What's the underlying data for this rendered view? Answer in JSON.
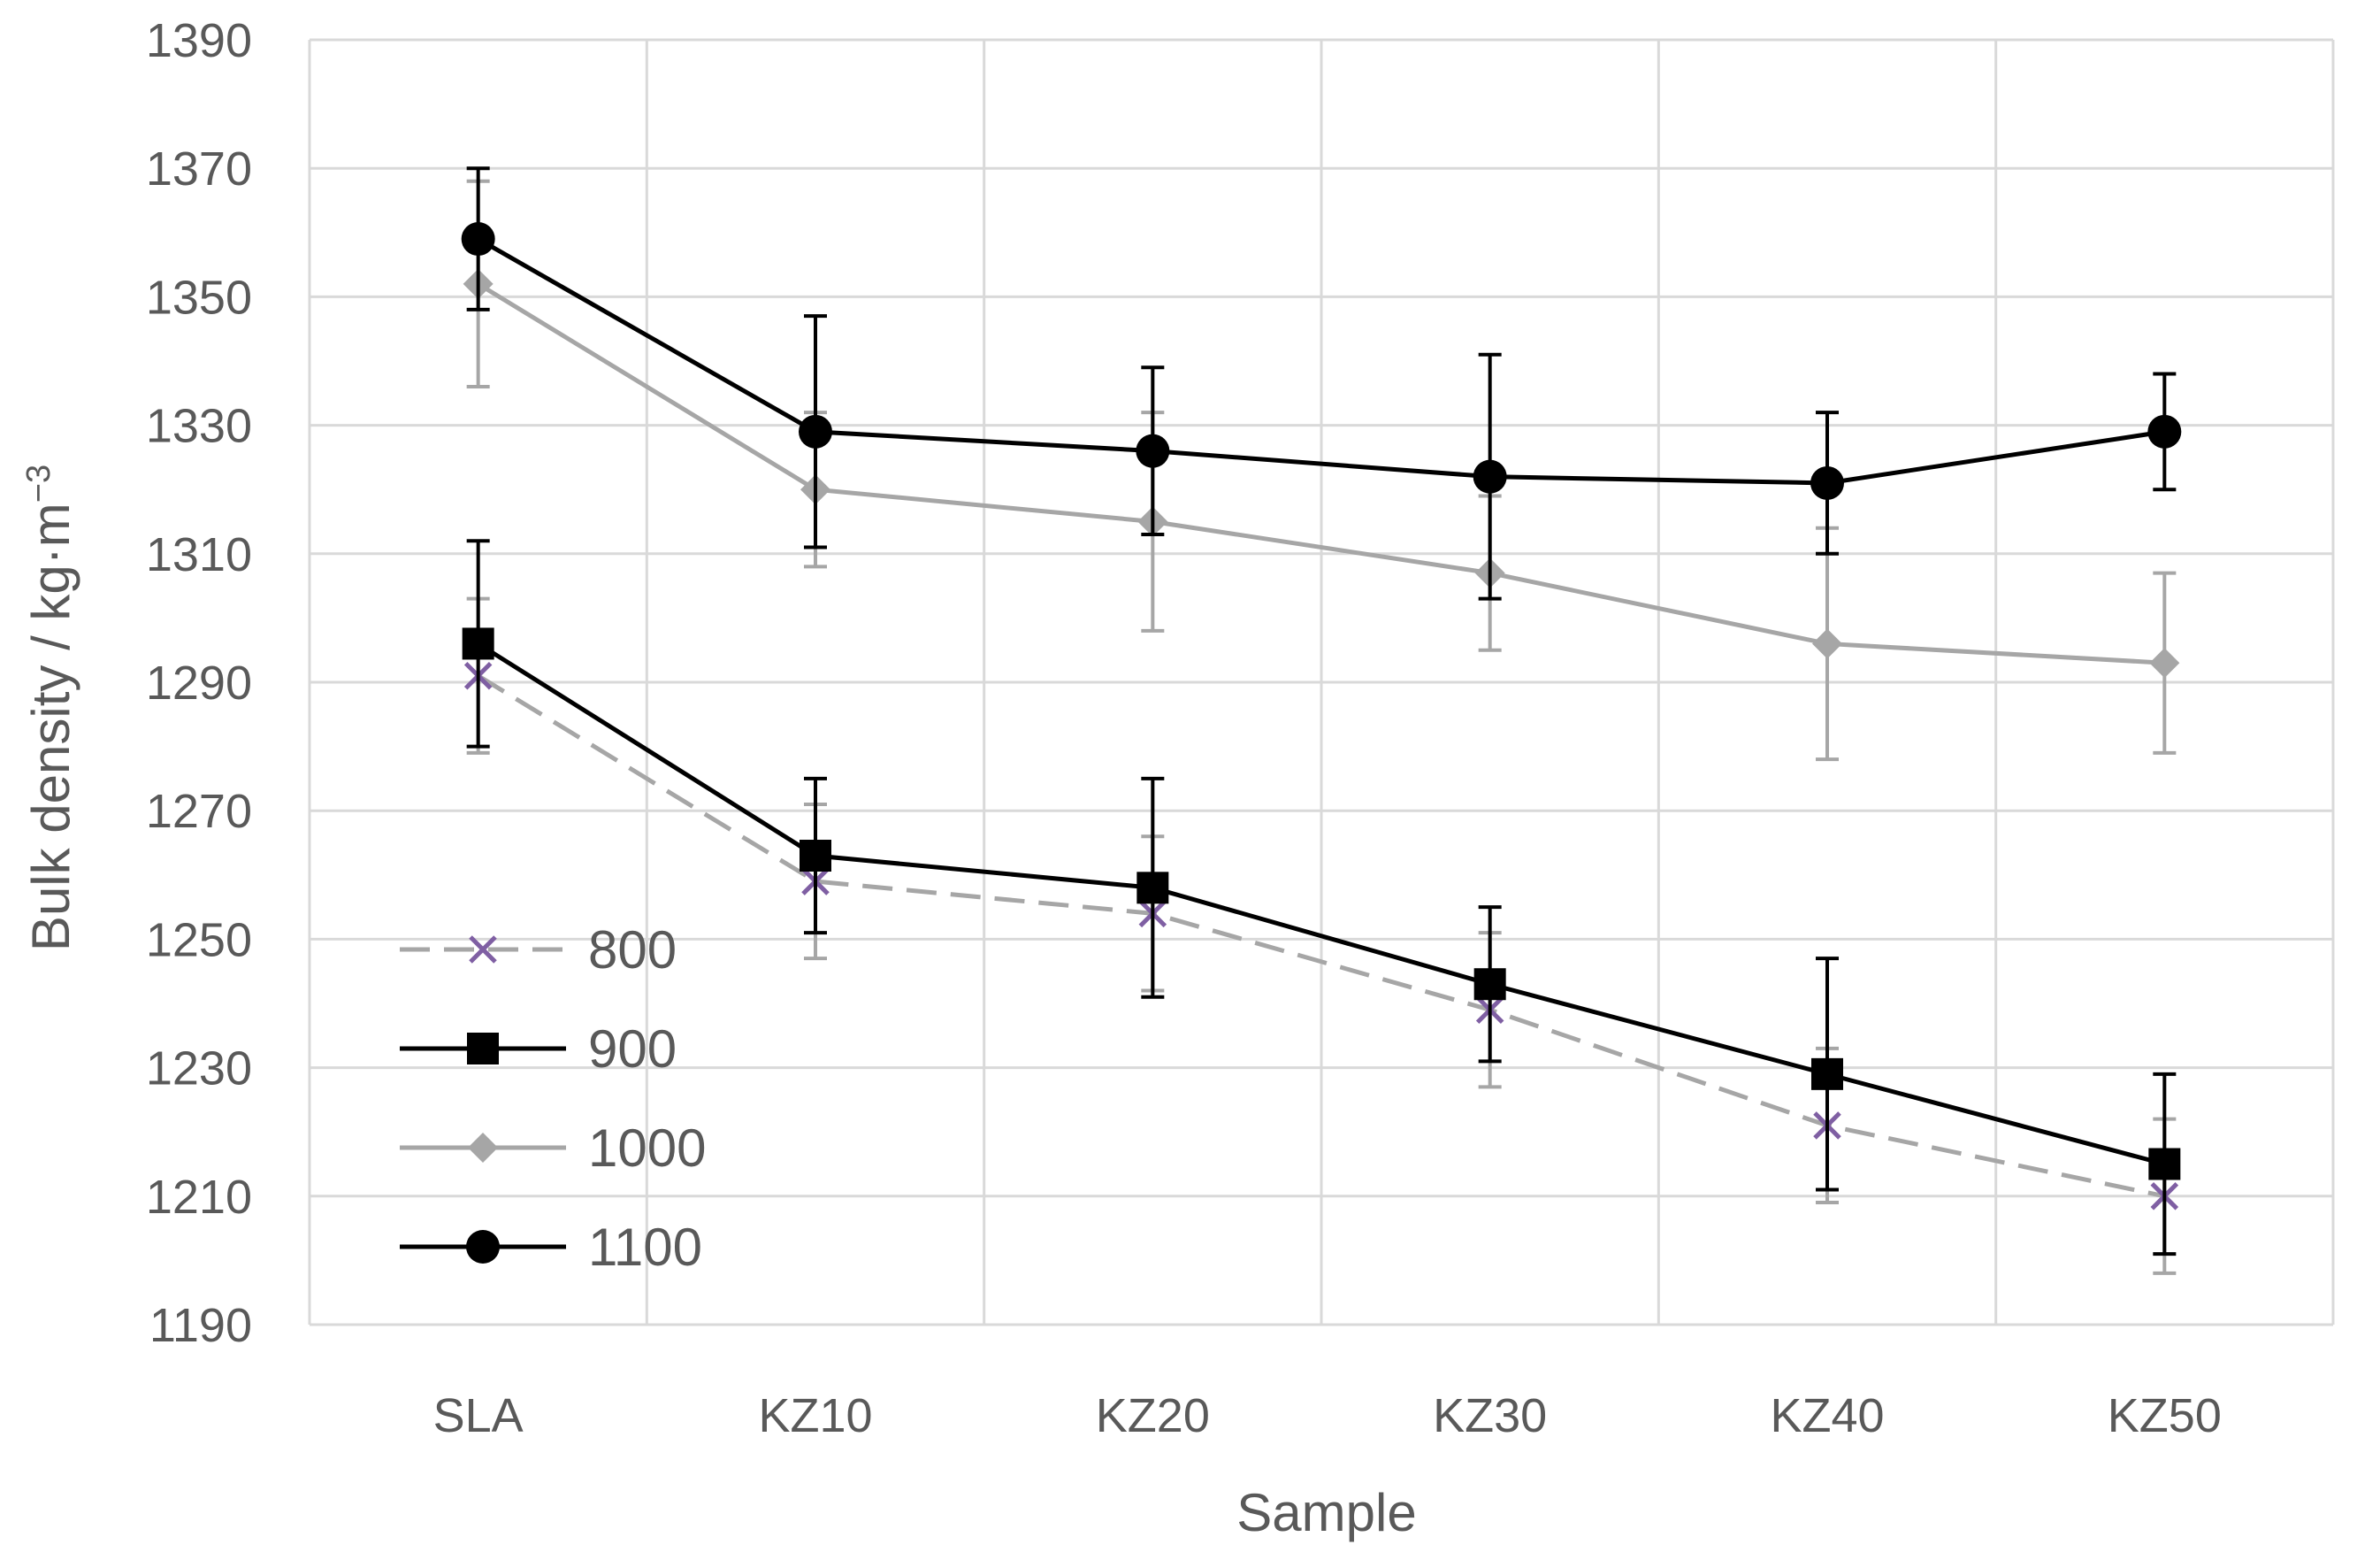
{
  "chart_data": {
    "type": "line",
    "title": "",
    "xlabel": "Sample",
    "ylabel": "Bulk density / kg·m",
    "ylabel_sup": "−3",
    "categories": [
      "SLA",
      "KZ10",
      "KZ20",
      "KZ30",
      "KZ40",
      "KZ50"
    ],
    "ylim": [
      1190,
      1390
    ],
    "yticks": [
      1190,
      1210,
      1230,
      1250,
      1270,
      1290,
      1310,
      1330,
      1350,
      1370,
      1390
    ],
    "grid": true,
    "legend_position": "bottom-left",
    "series": [
      {
        "name": "800",
        "color": "#a6a6a6",
        "marker_color": "#7f5fa3",
        "marker": "x",
        "dashed": true,
        "values": [
          1291,
          1259,
          1254,
          1239,
          1221,
          1210
        ],
        "errors": [
          12,
          12,
          12,
          12,
          12,
          12
        ]
      },
      {
        "name": "900",
        "color": "#000000",
        "marker_color": "#000000",
        "marker": "square",
        "dashed": false,
        "values": [
          1296,
          1263,
          1258,
          1243,
          1229,
          1215
        ],
        "errors": [
          16,
          12,
          17,
          12,
          18,
          14
        ]
      },
      {
        "name": "1000",
        "color": "#a6a6a6",
        "marker_color": "#a6a6a6",
        "marker": "diamond",
        "dashed": false,
        "values": [
          1352,
          1320,
          1315,
          1307,
          1296,
          1293
        ],
        "errors": [
          16,
          12,
          17,
          12,
          18,
          14
        ]
      },
      {
        "name": "1100",
        "color": "#000000",
        "marker_color": "#000000",
        "marker": "circle",
        "dashed": false,
        "values": [
          1359,
          1329,
          1326,
          1322,
          1321,
          1329
        ],
        "errors": [
          11,
          18,
          13,
          19,
          11,
          9
        ]
      }
    ]
  }
}
